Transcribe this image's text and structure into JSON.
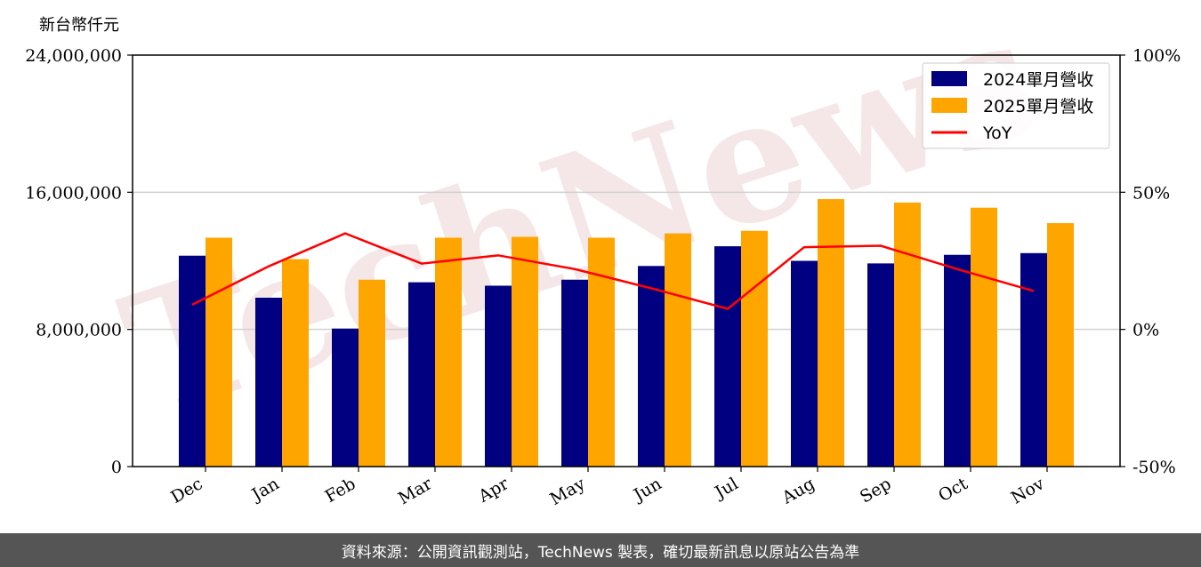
{
  "unit_label": "新台幣仟元",
  "footer": "資料來源：公開資訊觀測站，TechNews 製表，確切最新訊息以原站公告為準",
  "watermark": "TechNews",
  "colors": {
    "bar_2024": "#000080",
    "bar_2025": "#FFA500",
    "yoy": "#FF0000",
    "grid": "#d0d0d0"
  },
  "chart_data": {
    "type": "bar",
    "categories": [
      "Dec",
      "Jan",
      "Feb",
      "Mar",
      "Apr",
      "May",
      "Jun",
      "Jul",
      "Aug",
      "Sep",
      "Oct",
      "Nov"
    ],
    "series": [
      {
        "name": "2024單月營收",
        "values": [
          12300000,
          9850000,
          8050000,
          10750000,
          10550000,
          10900000,
          11700000,
          12850000,
          12000000,
          11850000,
          12350000,
          12450000
        ]
      },
      {
        "name": "2025單月營收",
        "values": [
          13350000,
          12100000,
          10900000,
          13350000,
          13400000,
          13350000,
          13600000,
          13750000,
          15600000,
          15400000,
          15100000,
          14200000
        ]
      }
    ],
    "line_series": {
      "name": "YoY",
      "axis": "right",
      "values": [
        9,
        23,
        35,
        24,
        27,
        22,
        15,
        7.5,
        30,
        30.5,
        22,
        14
      ]
    },
    "y_left": {
      "lim": [
        0,
        24000000
      ],
      "ticks": [
        0,
        8000000,
        16000000,
        24000000
      ],
      "tick_labels": [
        "0",
        "8,000,000",
        "16,000,000",
        "24,000,000"
      ]
    },
    "y_right": {
      "lim": [
        -50,
        100
      ],
      "ticks": [
        -50,
        0,
        50,
        100
      ],
      "tick_labels": [
        "-50%",
        "0%",
        "50%",
        "100%"
      ]
    },
    "grid": "horizontal",
    "legend": "top-right"
  }
}
